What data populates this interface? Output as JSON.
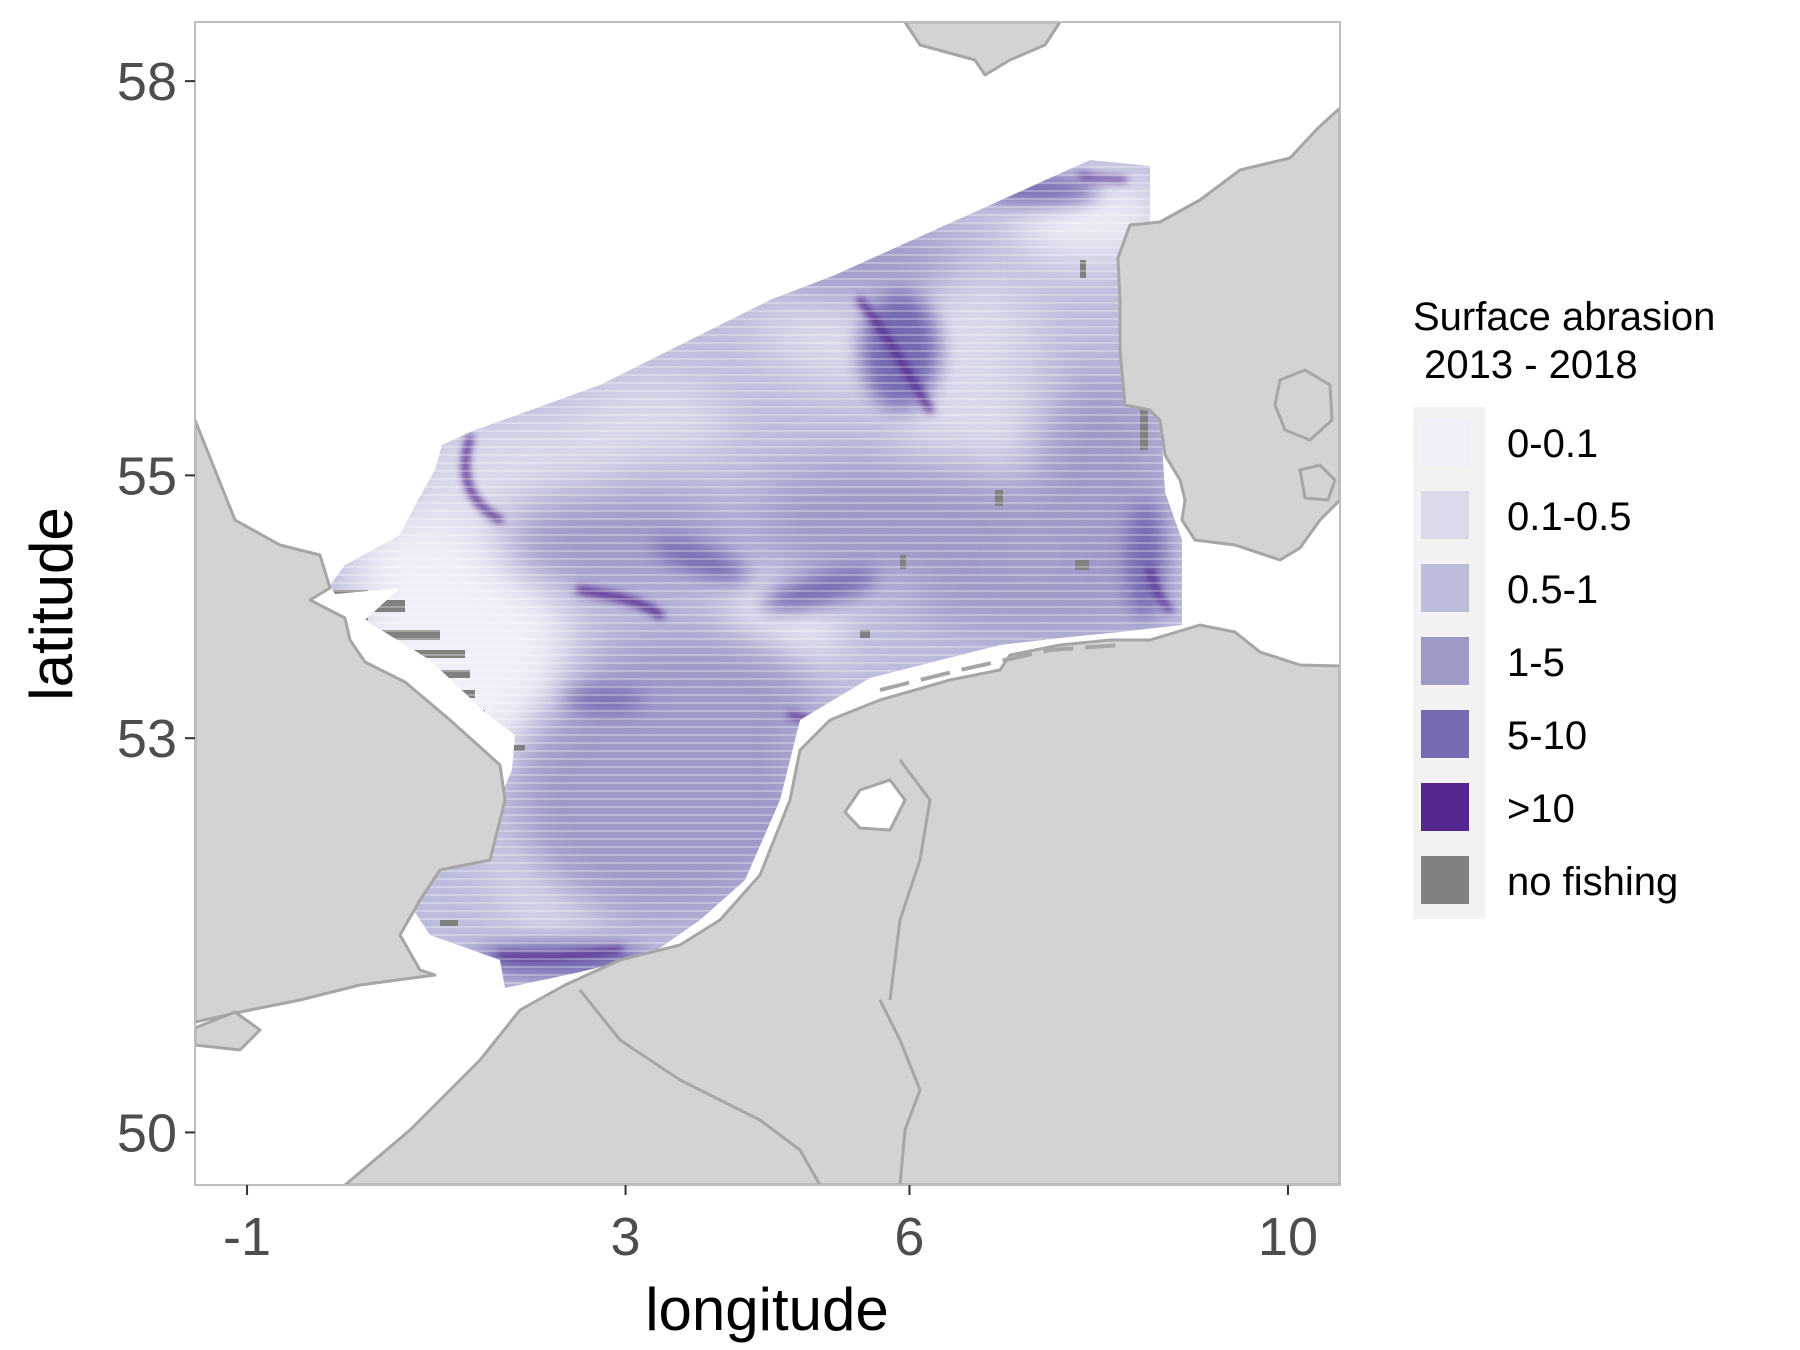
{
  "map": {
    "x_axis": {
      "title": "longitude",
      "ticks": [
        {
          "value": -1,
          "label": "-1"
        },
        {
          "value": 3,
          "label": "3"
        },
        {
          "value": 6,
          "label": "6"
        },
        {
          "value": 10,
          "label": "10"
        }
      ],
      "range": [
        -1.55,
        10.55
      ]
    },
    "y_axis": {
      "title": "latitude",
      "ticks": [
        {
          "value": 50,
          "label": "50"
        },
        {
          "value": 53,
          "label": "53"
        },
        {
          "value": 55,
          "label": "55"
        },
        {
          "value": 58,
          "label": "58"
        }
      ],
      "range": [
        49.6,
        58.45
      ]
    },
    "colors": {
      "land": "#d3d3d3",
      "coast": "#a6a6a6",
      "sea": "#ffffff",
      "panel_border": "#bdbdbd"
    },
    "legend": {
      "title_line1": "Surface abrasion",
      "title_line2": " 2013 - 2018",
      "position": "right",
      "items": [
        {
          "label": "0-0.1",
          "color": "#f0eff7"
        },
        {
          "label": "0.1-0.5",
          "color": "#dadaeb"
        },
        {
          "label": "0.5-1",
          "color": "#bcbddc"
        },
        {
          "label": "1-5",
          "color": "#9e9ac8"
        },
        {
          "label": "5-10",
          "color": "#756bb1"
        },
        {
          "label": ">10",
          "color": "#54278f"
        },
        {
          "label": "no fishing",
          "color": "#808080"
        }
      ]
    }
  }
}
